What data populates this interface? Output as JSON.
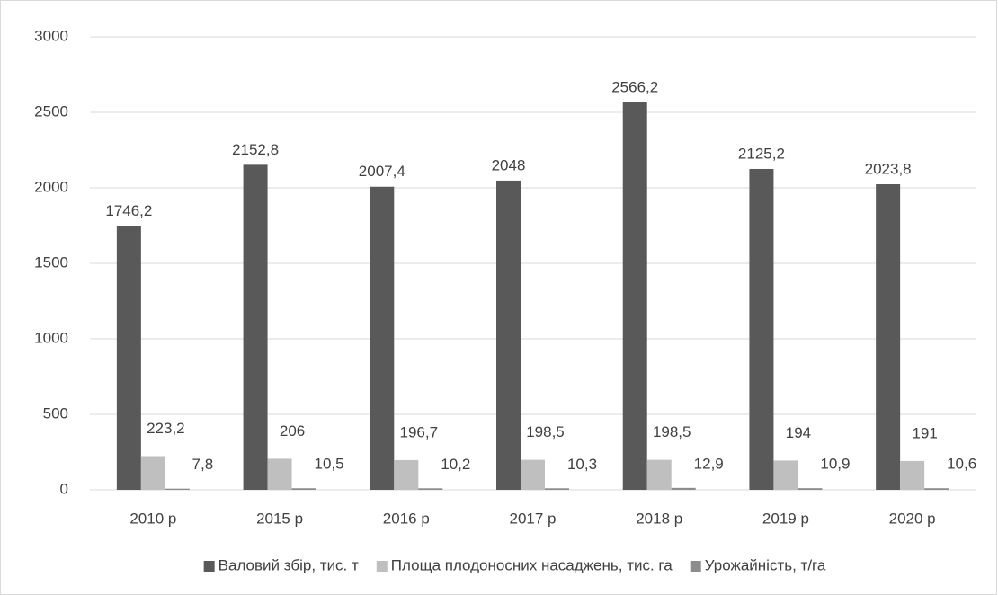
{
  "chart_data": {
    "type": "bar",
    "categories": [
      "2010 р",
      "2015 р",
      "2016 р",
      "2017 р",
      "2018 р",
      "2019 р",
      "2020 р"
    ],
    "series": [
      {
        "name": "Валовий збір, тис. т",
        "color": "#595959",
        "values": [
          1746.2,
          2152.8,
          2007.4,
          2048,
          2566.2,
          2125.2,
          2023.8
        ],
        "value_labels": [
          "1746,2",
          "2152,8",
          "2007,4",
          "2048",
          "2566,2",
          "2125,2",
          "2023,8"
        ]
      },
      {
        "name": "Площа плодоносних насаджень, тис. га",
        "color": "#bfbfbf",
        "values": [
          223.2,
          206,
          196.7,
          198.5,
          198.5,
          194,
          191
        ],
        "value_labels": [
          "223,2",
          "206",
          "196,7",
          "198,5",
          "198,5",
          "194",
          "191"
        ]
      },
      {
        "name": "Урожайність, т/га",
        "color": "#8c8c8c",
        "values": [
          7.8,
          10.5,
          10.2,
          10.3,
          12.9,
          10.9,
          10.6
        ],
        "value_labels": [
          "7,8",
          "10,5",
          "10,2",
          "10,3",
          "12,9",
          "10,9",
          "10,6"
        ]
      }
    ],
    "ylim": [
      0,
      3000
    ],
    "yticks": [
      0,
      500,
      1000,
      1500,
      2000,
      2500,
      3000
    ],
    "grid": true,
    "legend": "bottom"
  }
}
